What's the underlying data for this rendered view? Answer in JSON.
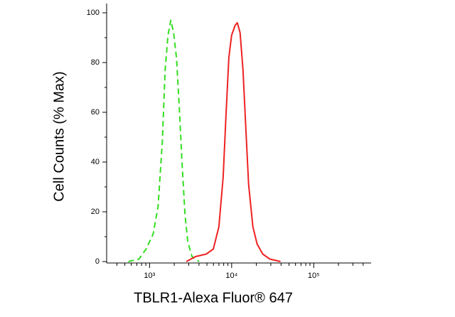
{
  "chart_data": {
    "type": "line",
    "xlabel": "TBLR1-Alexa Fluor® 647",
    "ylabel": "Cell Counts (% Max)",
    "xscale": "log",
    "xlim": [
      300,
      500000
    ],
    "ylim": [
      0,
      100
    ],
    "xticks": [
      {
        "value": 1000,
        "label": "10³"
      },
      {
        "value": 10000,
        "label": "10⁴"
      },
      {
        "value": 100000,
        "label": "10⁵"
      }
    ],
    "xminorticks": [
      400,
      500,
      600,
      700,
      800,
      900,
      2000,
      3000,
      4000,
      5000,
      6000,
      7000,
      8000,
      9000,
      20000,
      30000,
      40000,
      50000,
      60000,
      70000,
      80000,
      90000,
      200000,
      300000,
      400000
    ],
    "yticks": [
      0,
      20,
      40,
      60,
      80,
      100
    ],
    "yminorticks": [
      10,
      30,
      50,
      70,
      90
    ],
    "series": [
      {
        "color": "#33dd22",
        "dash": true,
        "x": [
          551,
          743,
          906,
          1104,
          1269,
          1429,
          1548,
          1676,
          1815,
          1964,
          2127,
          2302,
          2493,
          2699,
          2922,
          3290,
          4010
        ],
        "values": [
          0,
          1,
          5,
          11,
          22,
          48,
          77,
          91,
          97,
          92,
          82,
          62,
          39,
          19,
          8,
          2,
          0
        ]
      },
      {
        "color": "#ee2222",
        "dash": false,
        "x": [
          2805,
          3631,
          4898,
          5975,
          7000,
          7880,
          8530,
          9240,
          10000,
          11040,
          11720,
          12680,
          13740,
          14870,
          16100,
          18140,
          20430,
          23950,
          29220,
          39360
        ],
        "values": [
          0,
          2,
          3,
          5,
          14,
          34,
          59,
          82,
          91,
          95,
          96,
          92,
          77,
          54,
          31,
          14,
          7,
          3,
          1,
          0
        ]
      }
    ]
  }
}
